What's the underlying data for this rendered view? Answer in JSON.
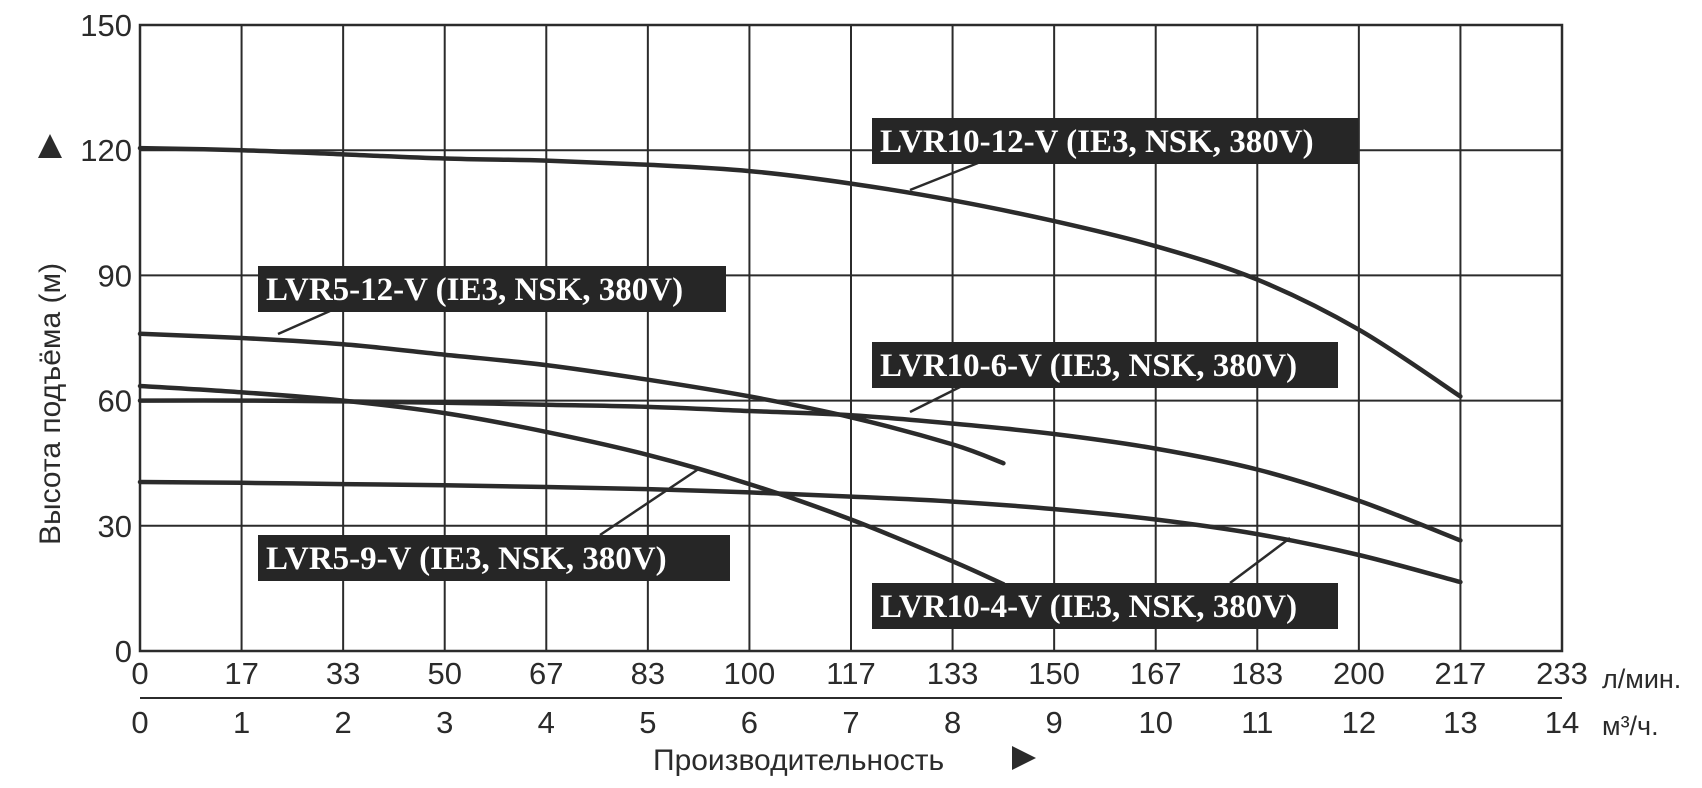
{
  "chart_data": {
    "type": "line",
    "title": "",
    "ylabel": "Высота подъёма (м)",
    "xlabel": "Производительность",
    "ylim": [
      0,
      150
    ],
    "xlim_m3h": [
      0,
      14
    ],
    "y_ticks": [
      "0",
      "30",
      "60",
      "90",
      "120",
      "150"
    ],
    "x_ticks_lmin": [
      "0",
      "17",
      "33",
      "50",
      "67",
      "83",
      "100",
      "117",
      "133",
      "150",
      "167",
      "183",
      "200",
      "217",
      "233"
    ],
    "x_ticks_m3h": [
      "0",
      "1",
      "2",
      "3",
      "4",
      "5",
      "6",
      "7",
      "8",
      "9",
      "10",
      "11",
      "12",
      "13",
      "14"
    ],
    "x_unit_lmin": "л/мин.",
    "x_unit_m3h": "м³/ч.",
    "grid": true,
    "series": [
      {
        "name": "LVR10-12-V (IE3, NSK, 380V)",
        "x": [
          0,
          1,
          2,
          3,
          4,
          5,
          6,
          7,
          8,
          9,
          10,
          11,
          12,
          13
        ],
        "y": [
          120.5,
          120,
          119,
          118,
          117.5,
          116.5,
          115,
          112,
          108,
          103,
          97,
          89,
          77,
          61
        ]
      },
      {
        "name": "LVR5-12-V (IE3, NSK, 380V)",
        "x": [
          0,
          1,
          2,
          3,
          4,
          5,
          6,
          7,
          8,
          8.5
        ],
        "y": [
          76,
          75,
          73.5,
          71,
          68.5,
          65,
          61,
          56,
          49.5,
          45
        ]
      },
      {
        "name": "LVR10-6-V (IE3, NSK, 380V)",
        "x": [
          0,
          1,
          2,
          3,
          4,
          5,
          6,
          7,
          8,
          9,
          10,
          11,
          12,
          13
        ],
        "y": [
          60,
          60,
          59.8,
          59.5,
          59,
          58.5,
          57.5,
          56.5,
          54.5,
          52,
          48.5,
          43.5,
          36,
          26.5
        ]
      },
      {
        "name": "LVR5-9-V (IE3, NSK, 380V)",
        "x": [
          0,
          1,
          2,
          3,
          4,
          5,
          6,
          7,
          8,
          8.5
        ],
        "y": [
          63.5,
          62,
          60,
          57,
          52.5,
          47,
          40,
          31.5,
          21.5,
          16
        ]
      },
      {
        "name": "LVR10-4-V (IE3, NSK, 380V)",
        "x": [
          0,
          1,
          2,
          3,
          4,
          5,
          6,
          7,
          8,
          9,
          10,
          11,
          12,
          13
        ],
        "y": [
          40.5,
          40.3,
          40,
          39.7,
          39.3,
          38.8,
          38,
          37,
          35.8,
          34,
          31.5,
          28,
          23,
          16.5
        ]
      }
    ]
  }
}
